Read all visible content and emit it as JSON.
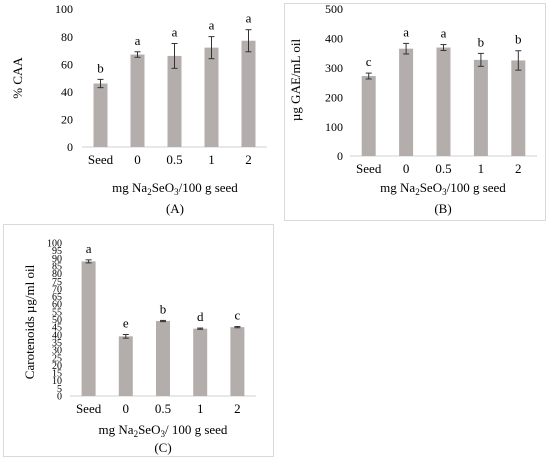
{
  "colors": {
    "bar": "#b3aeab",
    "axis": "#d0d0d0",
    "text": "#000000"
  },
  "chart_data": [
    {
      "type": "bar",
      "panel_label": "(A)",
      "ylabel": "% CAA",
      "xlabel": "mg Na2SeO3/100 g seed",
      "xlabel_parts": [
        "mg Na",
        "2",
        "SeO",
        "3",
        "/100 g seed"
      ],
      "categories": [
        "Seed",
        "0",
        "0.5",
        "1",
        "2"
      ],
      "values": [
        46,
        67,
        66,
        72,
        77
      ],
      "errors": [
        3,
        2,
        9,
        8,
        8
      ],
      "letters": [
        "b",
        "a",
        "a",
        "a",
        "a"
      ],
      "ylim": [
        0,
        100
      ],
      "yticks": [
        0,
        20,
        40,
        60,
        80,
        100
      ],
      "grid": false
    },
    {
      "type": "bar",
      "panel_label": "(B)",
      "ylabel": "µg GAE/mL oil",
      "xlabel": "mg Na2SeO3/100 g seed",
      "xlabel_parts": [
        "mg Na",
        "2",
        "SeO",
        "3",
        "/100 g seed"
      ],
      "categories": [
        "Seed",
        "0",
        "0.5",
        "1",
        "2"
      ],
      "values": [
        272,
        365,
        369,
        327,
        325
      ],
      "errors": [
        10,
        18,
        10,
        22,
        33
      ],
      "letters": [
        "c",
        "a",
        "a",
        "b",
        "b"
      ],
      "ylim": [
        0,
        500
      ],
      "yticks": [
        0,
        100,
        200,
        300,
        400,
        500
      ],
      "grid": false
    },
    {
      "type": "bar",
      "panel_label": "(C)",
      "ylabel": "Carotenoids µg/ml oil",
      "xlabel": "mg Na2SeO3/ 100 g seed",
      "xlabel_parts": [
        "mg Na",
        "2",
        "SeO",
        "3",
        "/ 100 g seed"
      ],
      "categories": [
        "Seed",
        "0",
        "0.5",
        "1",
        "2"
      ],
      "values": [
        88,
        39,
        49,
        44,
        45
      ],
      "errors": [
        1,
        1.2,
        0.4,
        0.4,
        0.4
      ],
      "letters": [
        "a",
        "e",
        "b",
        "d",
        "c"
      ],
      "ylim": [
        0,
        100
      ],
      "yticks": [
        0,
        5,
        10,
        15,
        20,
        25,
        30,
        35,
        40,
        45,
        50,
        55,
        60,
        65,
        70,
        75,
        80,
        85,
        90,
        95,
        100
      ],
      "grid": false
    }
  ]
}
